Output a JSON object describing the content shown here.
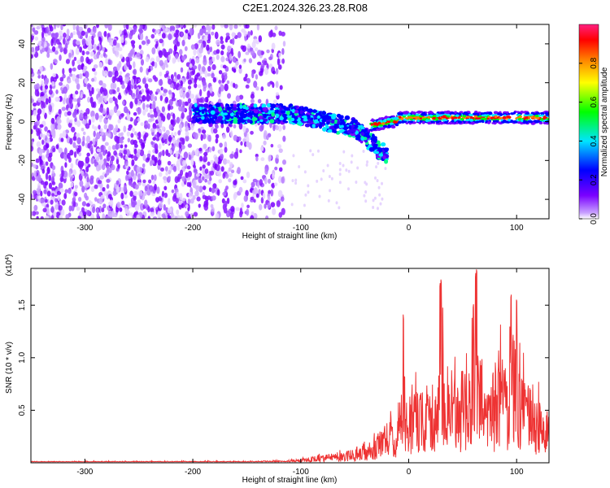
{
  "title": "C2E1.2024.326.23.28.R08",
  "chart_data": [
    {
      "type": "heatmap",
      "xlabel": "Height of straight line (km)",
      "ylabel": "Frequency (Hz)",
      "xlim": [
        -350,
        130
      ],
      "ylim": [
        -50,
        50
      ],
      "xticks": [
        -300,
        -200,
        -100,
        0,
        100
      ],
      "yticks": [
        -40,
        -20,
        0,
        20,
        40
      ],
      "colorbar": {
        "label": "Normalized spectral amplitude",
        "range": [
          0.0,
          1.0
        ],
        "ticks": [
          "0.0",
          "0.2",
          "0.4",
          "0.6",
          "0.8"
        ],
        "colormap": [
          "#ffffff",
          "#7a00ff",
          "#0000ff",
          "#00e5ff",
          "#00ff00",
          "#ffff00",
          "#ff8000",
          "#ff0000",
          "#ff0080"
        ]
      },
      "features": [
        {
          "description_x_range": [
            -350,
            -115
          ],
          "frequency_range": [
            -50,
            50
          ],
          "amplitude": 0.1
        },
        {
          "description_x_range": [
            -200,
            -20
          ],
          "frequency_center": [
            4,
            3,
            0,
            -8,
            -20
          ],
          "amplitude": 0.35
        },
        {
          "description_x_range": [
            -35,
            130
          ],
          "frequency_center": [
            0,
            2,
            2,
            2,
            2
          ],
          "amplitude": 0.85
        }
      ]
    },
    {
      "type": "line",
      "xlabel": "Height of straight line (km)",
      "ylabel": "SNR (10 * v/v)",
      "multiplier": "(x10⁴)",
      "xlim": [
        -350,
        130
      ],
      "ylim": [
        0,
        1.85
      ],
      "xticks": [
        -300,
        -200,
        -100,
        0,
        100
      ],
      "yticks": [
        "0.5",
        "1.0",
        "1.5"
      ],
      "series": [
        {
          "color": "#ee3333",
          "x": [
            -350,
            -300,
            -250,
            -200,
            -150,
            -120,
            -100,
            -90,
            -80,
            -70,
            -60,
            -50,
            -45,
            -40,
            -35,
            -30,
            -25,
            -20,
            -15,
            -10,
            -6,
            -5,
            -3,
            0,
            5,
            10,
            15,
            20,
            25,
            29,
            30,
            35,
            40,
            45,
            50,
            55,
            60,
            62,
            63,
            65,
            70,
            75,
            80,
            85,
            90,
            95,
            100,
            105,
            110,
            115,
            120,
            125,
            130
          ],
          "y": [
            0.02,
            0.02,
            0.02,
            0.02,
            0.02,
            0.03,
            0.05,
            0.08,
            0.1,
            0.12,
            0.14,
            0.18,
            0.22,
            0.25,
            0.28,
            0.35,
            0.45,
            0.55,
            0.5,
            0.6,
            1.0,
            1.45,
            0.8,
            0.75,
            0.9,
            0.95,
            0.85,
            0.9,
            1.1,
            1.7,
            1.75,
            1.0,
            1.05,
            1.2,
            1.25,
            1.1,
            1.5,
            1.8,
            1.85,
            1.4,
            1.2,
            1.1,
            1.3,
            1.35,
            1.2,
            1.6,
            1.55,
            1.15,
            1.0,
            0.9,
            0.8,
            0.7,
            0.65
          ]
        }
      ]
    }
  ]
}
